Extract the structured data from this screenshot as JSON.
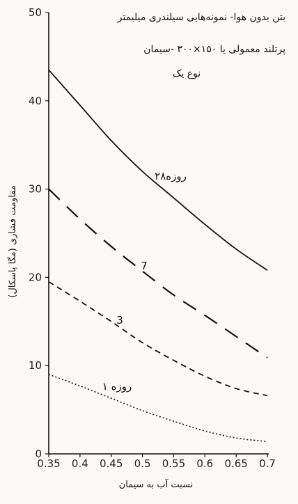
{
  "chart_data": {
    "type": "line",
    "title_lines": [
      "بتن بدون هوا- نمونه‌هایی سیلندری میلیمتر",
      "پرتلند معمولی یا ۱۵۰×۳۰۰ -سیمان",
      "نوع یک"
    ],
    "xlabel": "نسبت آب به سیمان",
    "ylabel": "مقاومت فشاری (مگا پاسکال)",
    "xlim": [
      0.35,
      0.7
    ],
    "ylim": [
      0,
      50
    ],
    "x_ticks": [
      "0.35",
      "0.4",
      "0.45",
      "0.5",
      "0.55",
      "0.6",
      "0.65",
      "0.7"
    ],
    "y_ticks": [
      "0",
      "10",
      "20",
      "30",
      "40",
      "50"
    ],
    "grid": false,
    "series": [
      {
        "name": "۲۸روزه",
        "style": "solid",
        "x": [
          0.35,
          0.4,
          0.45,
          0.5,
          0.55,
          0.6,
          0.65,
          0.7
        ],
        "y": [
          43.5,
          39.5,
          35.5,
          32.0,
          29.0,
          26.0,
          23.2,
          20.8
        ]
      },
      {
        "name": "7",
        "style": "long-dash",
        "x": [
          0.35,
          0.4,
          0.45,
          0.5,
          0.55,
          0.6,
          0.65,
          0.7
        ],
        "y": [
          30.0,
          26.6,
          23.5,
          20.7,
          18.0,
          15.7,
          13.3,
          10.9
        ]
      },
      {
        "name": "3",
        "style": "dash",
        "x": [
          0.35,
          0.4,
          0.45,
          0.5,
          0.55,
          0.6,
          0.65,
          0.7
        ],
        "y": [
          19.5,
          17.3,
          15.0,
          12.6,
          10.6,
          8.8,
          7.4,
          6.6
        ]
      },
      {
        "name": "۱ روزه",
        "style": "dot",
        "x": [
          0.35,
          0.4,
          0.45,
          0.5,
          0.55,
          0.6,
          0.65,
          0.7
        ],
        "y": [
          9.0,
          7.7,
          6.3,
          4.9,
          3.7,
          2.6,
          1.8,
          1.4
        ]
      }
    ]
  }
}
